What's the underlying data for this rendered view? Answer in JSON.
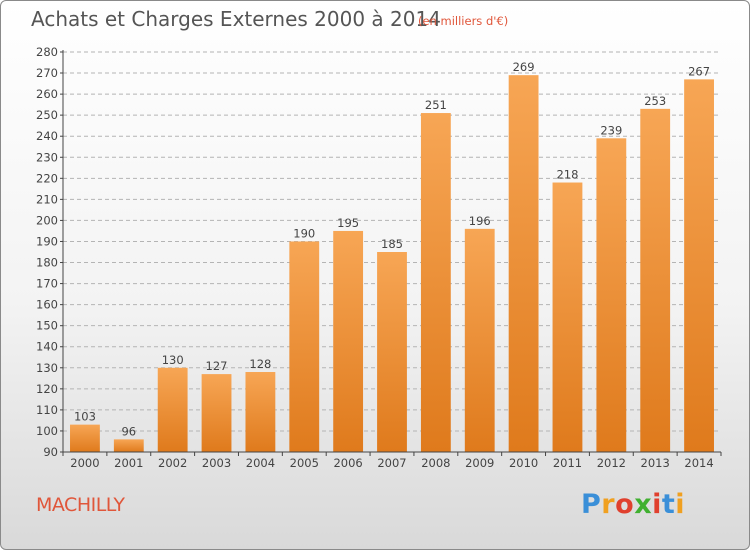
{
  "header": {
    "title": "Achats et Charges Externes 2000 à 2014",
    "subtitle": "(en milliers d'€)"
  },
  "footer": {
    "place": "MACHILLY",
    "logo_letters": [
      "P",
      "r",
      "o",
      "x",
      "i",
      "t",
      "i"
    ],
    "logo_colors": [
      "#3a8fd8",
      "#f0a020",
      "#e0402e",
      "#40b030",
      "#e0402e",
      "#3a8fd8",
      "#f0a020"
    ]
  },
  "chart_data": {
    "type": "bar",
    "categories": [
      "2000",
      "2001",
      "2002",
      "2003",
      "2004",
      "2005",
      "2006",
      "2007",
      "2008",
      "2009",
      "2010",
      "2011",
      "2012",
      "2013",
      "2014"
    ],
    "values": [
      103,
      96,
      130,
      127,
      128,
      190,
      195,
      185,
      251,
      196,
      269,
      218,
      239,
      253,
      267
    ],
    "ylim": [
      90,
      280
    ],
    "ytick_step": 10,
    "grid": true,
    "colors": {
      "bar_light": "#f7a655",
      "bar_dark": "#df7a1c",
      "axis": "#444444",
      "grid": "#b4b4b4"
    }
  }
}
